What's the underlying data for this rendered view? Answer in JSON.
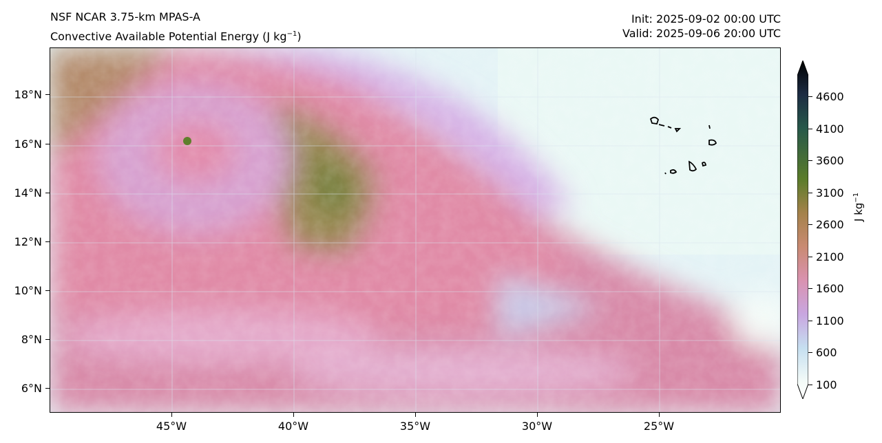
{
  "header": {
    "model": "NSF NCAR 3.75-km MPAS-A",
    "field": "Convective Available Potential Energy (J kg",
    "field_exp": "−1",
    "field_close": ")",
    "init": "Init: 2025-09-02 00:00 UTC",
    "valid": "Valid: 2025-09-06 20:00 UTC"
  },
  "map": {
    "lat_ticks": [
      "18°N",
      "16°N",
      "14°N",
      "12°N",
      "10°N",
      "8°N",
      "6°N"
    ],
    "lon_ticks": [
      "45°W",
      "40°W",
      "35°W",
      "30°W",
      "25°W"
    ],
    "extent": {
      "lon_min": -50,
      "lon_max": -20,
      "lat_min": 5,
      "lat_max": 20
    }
  },
  "colorbar": {
    "ticks": [
      "4600",
      "4100",
      "3600",
      "3100",
      "2600",
      "2100",
      "1600",
      "1100",
      "600",
      "100"
    ],
    "label": "J kg",
    "label_exp": "−1",
    "colors": [
      "#000000",
      "#1d2c43",
      "#27584a",
      "#5a7c2a",
      "#a4824a",
      "#c98a72",
      "#d992b0",
      "#c8a6e0",
      "#c6dff0",
      "#f4fbf8",
      "#ffffff"
    ]
  }
}
